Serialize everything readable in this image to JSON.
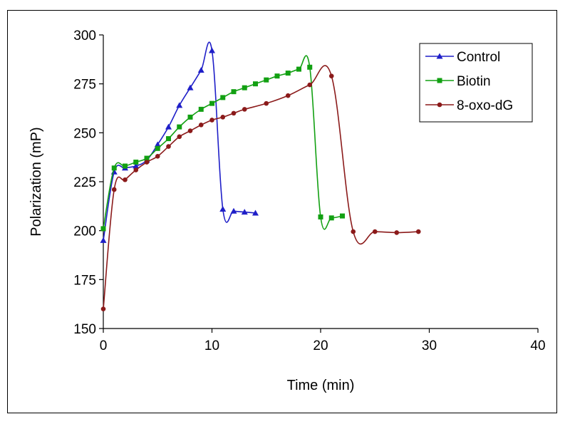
{
  "chart_data": {
    "type": "line",
    "title": "",
    "xlabel": "Time (min)",
    "ylabel": "Polarization (mP)",
    "xlim": [
      0,
      40
    ],
    "ylim": [
      150,
      300
    ],
    "x_ticks": [
      0,
      10,
      20,
      30,
      40
    ],
    "y_ticks": [
      150,
      175,
      200,
      225,
      250,
      275,
      300
    ],
    "x_tick_labels": [
      "0",
      "10",
      "20",
      "30",
      "40"
    ],
    "y_tick_labels": [
      "150",
      "175",
      "200",
      "225",
      "250",
      "275",
      "300"
    ],
    "grid": false,
    "legend_position": "top-right",
    "series": [
      {
        "name": "Control",
        "color": "#1f1fc8",
        "marker": "triangle",
        "x": [
          0,
          1,
          2,
          3,
          4,
          5,
          6,
          7,
          8,
          9,
          10,
          11,
          12,
          13,
          14
        ],
        "y": [
          195,
          230,
          232,
          233,
          236,
          244,
          253,
          264,
          273,
          282,
          292,
          211,
          210,
          209.5,
          209
        ]
      },
      {
        "name": "Biotin",
        "color": "#12a012",
        "marker": "square",
        "x": [
          0,
          1,
          2,
          3,
          4,
          5,
          6,
          7,
          8,
          9,
          10,
          11,
          12,
          13,
          14,
          15,
          16,
          17,
          18,
          19,
          20,
          21,
          22
        ],
        "y": [
          201,
          232,
          233,
          235,
          237,
          242,
          247,
          253,
          258,
          262,
          265,
          268,
          271,
          273,
          275,
          277,
          279,
          280.5,
          282.5,
          283.5,
          207,
          206.5,
          207.5
        ]
      },
      {
        "name": "8-oxo-dG",
        "color": "#8b1a1a",
        "marker": "circle",
        "x": [
          0,
          1,
          2,
          3,
          4,
          5,
          6,
          7,
          8,
          9,
          10,
          11,
          12,
          13,
          15,
          17,
          19,
          21,
          23,
          25,
          27,
          29
        ],
        "y": [
          160,
          221,
          226,
          231,
          235,
          238,
          243,
          248,
          251,
          254,
          256.5,
          258,
          260,
          262,
          265,
          269,
          274.5,
          279,
          199.5,
          199.5,
          199,
          199.5
        ]
      }
    ]
  }
}
